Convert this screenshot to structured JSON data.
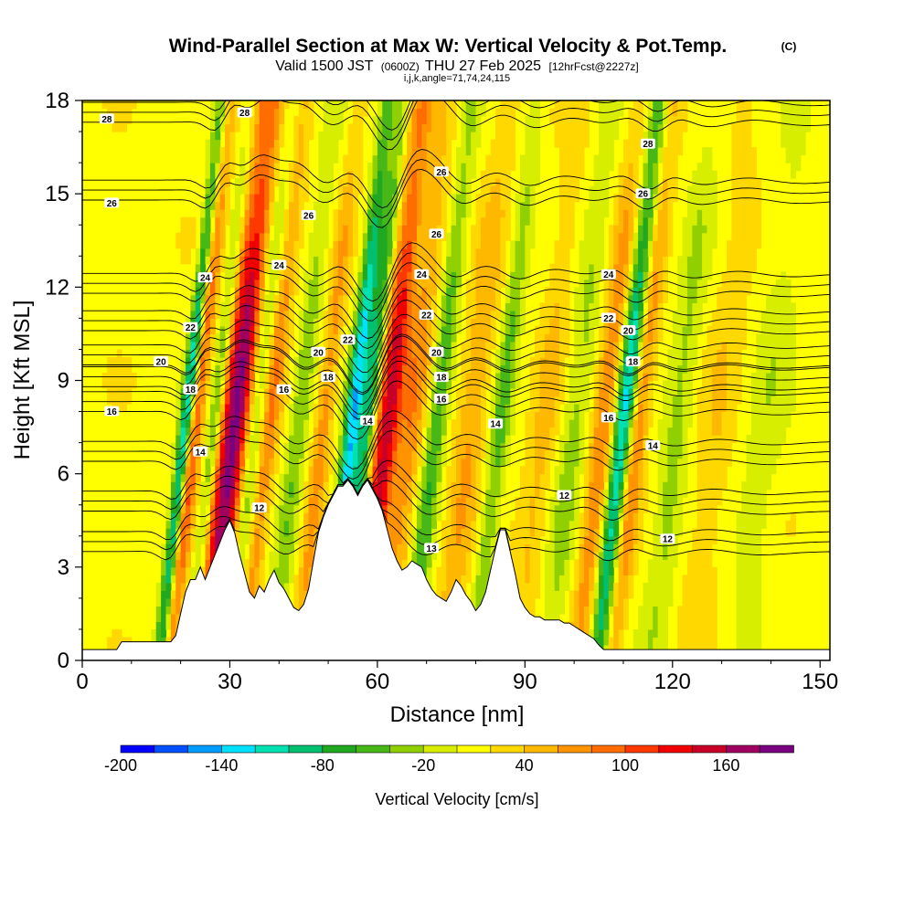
{
  "chart_data": {
    "type": "heatmap",
    "title": "Wind-Parallel Section at Max W: Vertical Velocity & Pot.Temp.",
    "title_mark": "(C)",
    "subtitle_parts": [
      "Valid 1500 JST",
      "(0600Z)",
      "THU 27 Feb 2025",
      "[12hrFcst@2227z]"
    ],
    "subtitle2": "i,j,k,angle=71,74,24,115",
    "xlabel": "Distance [nm]",
    "ylabel": "Height [Kft MSL]",
    "xlim": [
      0,
      152
    ],
    "ylim": [
      0,
      18
    ],
    "xticks": [
      0,
      30,
      60,
      90,
      120,
      150
    ],
    "yticks": [
      0,
      3,
      6,
      9,
      12,
      15,
      18
    ],
    "colorbar": {
      "label": "Vertical Velocity [cm/s]",
      "min": -200,
      "max": 200,
      "ticks": [
        -200,
        -140,
        -80,
        -20,
        40,
        100,
        160
      ],
      "colors": [
        "#0000ff",
        "#0050ff",
        "#009cff",
        "#00e0ff",
        "#00e0b0",
        "#00c070",
        "#20a820",
        "#48b818",
        "#90d000",
        "#d8ee00",
        "#ffff00",
        "#ffd800",
        "#ffb800",
        "#ff9400",
        "#ff6c00",
        "#ff3800",
        "#f00000",
        "#c80028",
        "#a00060",
        "#7a0082"
      ]
    },
    "terrain": [
      [
        0,
        0.35
      ],
      [
        7,
        0.35
      ],
      [
        8,
        0.6
      ],
      [
        18,
        0.6
      ],
      [
        19,
        0.8
      ],
      [
        20,
        1.5
      ],
      [
        21,
        2.2
      ],
      [
        22,
        2.6
      ],
      [
        23,
        2.6
      ],
      [
        24,
        3.0
      ],
      [
        25,
        2.6
      ],
      [
        26,
        3.0
      ],
      [
        27,
        3.4
      ],
      [
        28,
        3.8
      ],
      [
        29,
        4.2
      ],
      [
        30,
        4.5
      ],
      [
        31,
        4.1
      ],
      [
        32,
        3.4
      ],
      [
        33,
        2.8
      ],
      [
        34,
        2.2
      ],
      [
        35,
        2.0
      ],
      [
        36,
        2.4
      ],
      [
        37,
        2.2
      ],
      [
        38,
        2.6
      ],
      [
        39,
        2.9
      ],
      [
        40,
        2.5
      ],
      [
        41,
        2.3
      ],
      [
        42,
        2.0
      ],
      [
        43,
        1.7
      ],
      [
        44,
        1.6
      ],
      [
        45,
        1.8
      ],
      [
        46,
        2.3
      ],
      [
        47,
        3.2
      ],
      [
        48,
        4.1
      ],
      [
        49,
        4.6
      ],
      [
        50,
        5.0
      ],
      [
        51,
        5.3
      ],
      [
        52,
        5.6
      ],
      [
        53,
        5.6
      ],
      [
        54,
        5.8
      ],
      [
        55,
        5.6
      ],
      [
        56,
        5.3
      ],
      [
        57,
        5.6
      ],
      [
        58,
        5.8
      ],
      [
        59,
        5.5
      ],
      [
        60,
        5.2
      ],
      [
        61,
        4.8
      ],
      [
        62,
        4.2
      ],
      [
        63,
        3.6
      ],
      [
        64,
        3.2
      ],
      [
        65,
        2.9
      ],
      [
        66,
        3.0
      ],
      [
        67,
        3.2
      ],
      [
        68,
        3.1
      ],
      [
        69,
        3.0
      ],
      [
        70,
        2.6
      ],
      [
        71,
        2.3
      ],
      [
        72,
        2.1
      ],
      [
        73,
        2.0
      ],
      [
        74,
        1.9
      ],
      [
        75,
        2.2
      ],
      [
        76,
        2.6
      ],
      [
        77,
        2.4
      ],
      [
        78,
        2.1
      ],
      [
        79,
        1.9
      ],
      [
        80,
        1.6
      ],
      [
        81,
        1.8
      ],
      [
        82,
        2.2
      ],
      [
        83,
        2.9
      ],
      [
        84,
        3.6
      ],
      [
        85,
        4.2
      ],
      [
        86,
        4.2
      ],
      [
        87,
        3.5
      ],
      [
        88,
        2.8
      ],
      [
        89,
        2.0
      ],
      [
        90,
        1.7
      ],
      [
        91,
        1.5
      ],
      [
        92,
        1.4
      ],
      [
        93,
        1.4
      ],
      [
        94,
        1.3
      ],
      [
        95,
        1.3
      ],
      [
        96,
        1.3
      ],
      [
        97,
        1.3
      ],
      [
        98,
        1.2
      ],
      [
        99,
        1.2
      ],
      [
        100,
        1.1
      ],
      [
        101,
        1.0
      ],
      [
        102,
        0.9
      ],
      [
        103,
        0.8
      ],
      [
        104,
        0.7
      ],
      [
        105,
        0.5
      ],
      [
        106,
        0.35
      ],
      [
        152,
        0.35
      ]
    ],
    "updrafts": [
      {
        "x": 32,
        "w": 3.5,
        "peak": 175
      },
      {
        "x": 24,
        "w": 1.5,
        "peak": 90
      },
      {
        "x": 39,
        "w": 2.0,
        "peak": 70
      },
      {
        "x": 50,
        "w": 1.8,
        "peak": 60
      },
      {
        "x": 63,
        "w": 2.5,
        "peak": 140
      },
      {
        "x": 68,
        "w": 2.5,
        "peak": 60
      },
      {
        "x": 80,
        "w": 3.0,
        "peak": 50
      },
      {
        "x": 95,
        "w": 3.0,
        "peak": 35
      },
      {
        "x": 107,
        "w": 2.5,
        "peak": 70
      },
      {
        "x": 114,
        "w": 2.0,
        "peak": 70
      },
      {
        "x": 130,
        "w": 4.0,
        "peak": 25
      }
    ],
    "downdrafts": [
      {
        "x": 22,
        "w": 1.3,
        "peak": -130
      },
      {
        "x": 28,
        "w": 1.5,
        "peak": -80
      },
      {
        "x": 36,
        "w": 2.0,
        "peak": -80
      },
      {
        "x": 45,
        "w": 2.0,
        "peak": -50
      },
      {
        "x": 56,
        "w": 1.8,
        "peak": -150
      },
      {
        "x": 59,
        "w": 1.5,
        "peak": -100
      },
      {
        "x": 73,
        "w": 2.0,
        "peak": -70
      },
      {
        "x": 86,
        "w": 2.0,
        "peak": -60
      },
      {
        "x": 101,
        "w": 3.0,
        "peak": -40
      },
      {
        "x": 111,
        "w": 2.0,
        "peak": -140
      },
      {
        "x": 122,
        "w": 3.0,
        "peak": -40
      },
      {
        "x": 140,
        "w": 4.0,
        "peak": -25
      }
    ],
    "theta_contours": [
      {
        "value": "12",
        "baseline": 3.5
      },
      {
        "value": "13",
        "baseline": 4.8
      },
      {
        "value": "14",
        "baseline": 6.4
      },
      {
        "value": "16",
        "baseline": 8.0
      },
      {
        "value": "18",
        "baseline": 8.8
      },
      {
        "value": "20",
        "baseline": 9.5
      },
      {
        "value": "22",
        "baseline": 10.6
      },
      {
        "value": "24",
        "baseline": 11.8
      },
      {
        "value": "26",
        "baseline": 14.8
      },
      {
        "value": "28",
        "baseline": 17.3
      }
    ],
    "contour_labels": [
      {
        "text": "28",
        "x": 5,
        "y": 17.4
      },
      {
        "text": "28",
        "x": 33,
        "y": 17.6
      },
      {
        "text": "26",
        "x": 6,
        "y": 14.7
      },
      {
        "text": "26",
        "x": 46,
        "y": 14.3
      },
      {
        "text": "26",
        "x": 73,
        "y": 15.7
      },
      {
        "text": "26",
        "x": 72,
        "y": 13.7
      },
      {
        "text": "28",
        "x": 115,
        "y": 16.6
      },
      {
        "text": "26",
        "x": 114,
        "y": 15.0
      },
      {
        "text": "24",
        "x": 25,
        "y": 12.3
      },
      {
        "text": "24",
        "x": 40,
        "y": 12.7
      },
      {
        "text": "24",
        "x": 69,
        "y": 12.4
      },
      {
        "text": "24",
        "x": 107,
        "y": 12.4
      },
      {
        "text": "22",
        "x": 22,
        "y": 10.7
      },
      {
        "text": "22",
        "x": 70,
        "y": 11.1
      },
      {
        "text": "22",
        "x": 107,
        "y": 11.0
      },
      {
        "text": "22",
        "x": 54,
        "y": 10.3
      },
      {
        "text": "20",
        "x": 16,
        "y": 9.6
      },
      {
        "text": "20",
        "x": 48,
        "y": 9.9
      },
      {
        "text": "20",
        "x": 72,
        "y": 9.9
      },
      {
        "text": "20",
        "x": 111,
        "y": 10.6
      },
      {
        "text": "18",
        "x": 50,
        "y": 9.1
      },
      {
        "text": "18",
        "x": 73,
        "y": 9.1
      },
      {
        "text": "18",
        "x": 112,
        "y": 9.6
      },
      {
        "text": "18",
        "x": 22,
        "y": 8.7
      },
      {
        "text": "16",
        "x": 6,
        "y": 8.0
      },
      {
        "text": "16",
        "x": 41,
        "y": 8.7
      },
      {
        "text": "16",
        "x": 73,
        "y": 8.4
      },
      {
        "text": "16",
        "x": 107,
        "y": 7.8
      },
      {
        "text": "14",
        "x": 24,
        "y": 6.7
      },
      {
        "text": "14",
        "x": 58,
        "y": 7.7
      },
      {
        "text": "14",
        "x": 84,
        "y": 7.6
      },
      {
        "text": "14",
        "x": 116,
        "y": 6.9
      },
      {
        "text": "12",
        "x": 36,
        "y": 4.9
      },
      {
        "text": "12",
        "x": 98,
        "y": 5.3
      },
      {
        "text": "12",
        "x": 119,
        "y": 3.9
      },
      {
        "text": "13",
        "x": 71,
        "y": 3.6
      }
    ]
  }
}
